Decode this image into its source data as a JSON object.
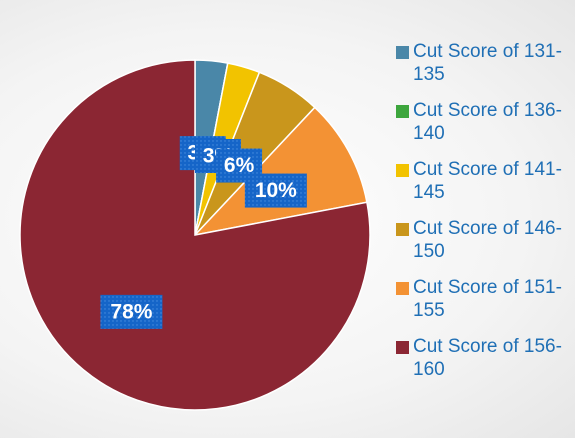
{
  "chart_data": {
    "type": "pie",
    "categories": [
      "Cut Score of 131-135",
      "Cut Score of 136-140",
      "Cut Score of 141-145",
      "Cut Score of 146-150",
      "Cut Score of 151-155",
      "Cut Score of 156-160"
    ],
    "values": [
      3,
      0,
      3,
      6,
      10,
      78
    ],
    "value_labels": [
      "3%",
      null,
      "3%",
      "6%",
      "10%",
      "78%"
    ],
    "colors": [
      "#4a87a8",
      "#3da63d",
      "#f2c300",
      "#c9961c",
      "#f39234",
      "#8b2633"
    ],
    "legend": "right"
  }
}
